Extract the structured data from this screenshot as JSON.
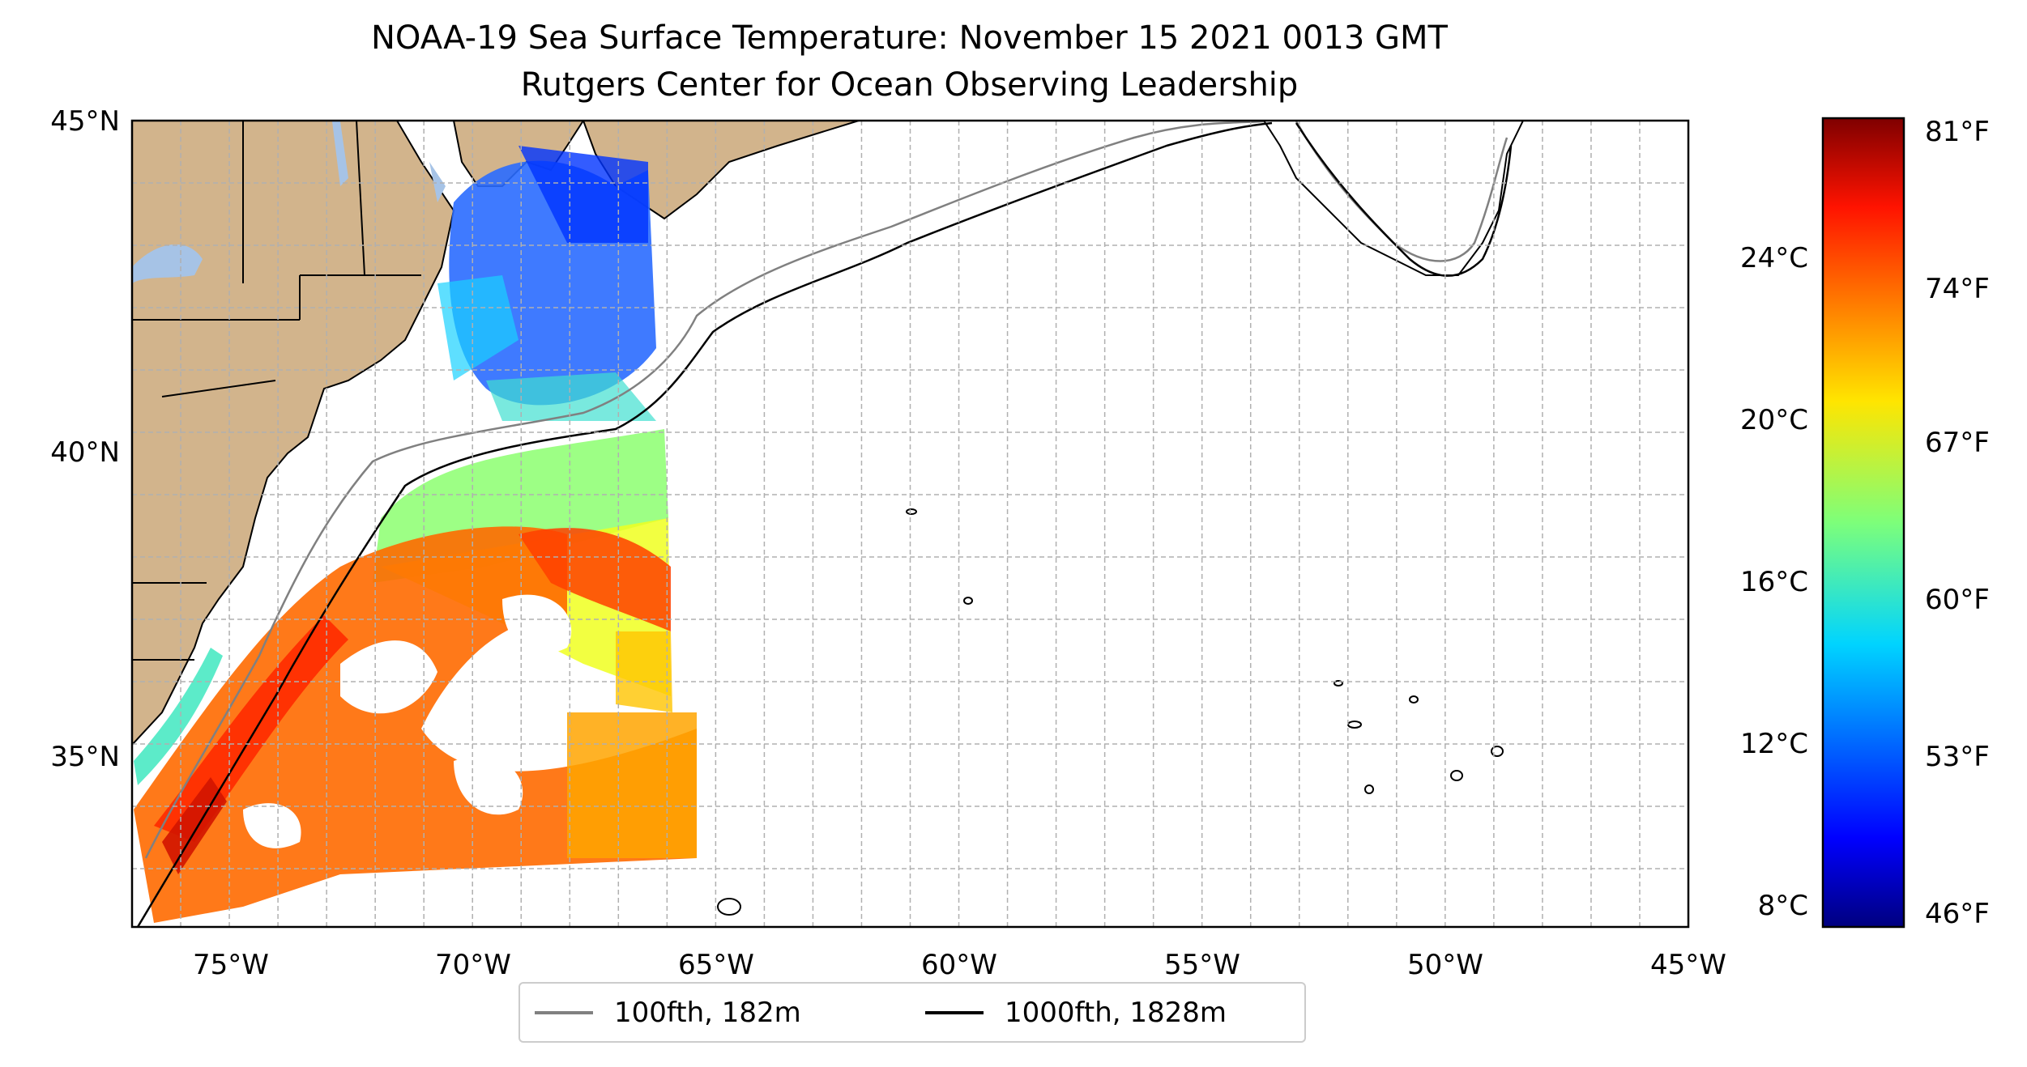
{
  "title": "NOAA-19 Sea Surface Temperature: November 15 2021 0013 GMT",
  "subtitle": "Rutgers Center for Ocean Observing Leadership",
  "map": {
    "lon_range": [
      -77,
      -45
    ],
    "lat_range": [
      32.3,
      45
    ],
    "lon_ticks": [
      "75°W",
      "70°W",
      "65°W",
      "60°W",
      "55°W",
      "50°W",
      "45°W"
    ],
    "lat_ticks": [
      "45°N",
      "40°N",
      "35°N"
    ],
    "gridlines": true,
    "land_color": "#d2b48c",
    "lake_color": "#a6c3e6"
  },
  "colorbar": {
    "colormap": "jet",
    "celsius_ticks": [
      "24°C",
      "20°C",
      "16°C",
      "12°C",
      "8°C"
    ],
    "fahrenheit_ticks": [
      "81°F",
      "74°F",
      "67°F",
      "60°F",
      "53°F",
      "46°F"
    ]
  },
  "legend": {
    "items": [
      {
        "label": "100fth, 182m",
        "color": "#808080"
      },
      {
        "label": "1000fth, 1828m",
        "color": "#000000"
      }
    ]
  }
}
